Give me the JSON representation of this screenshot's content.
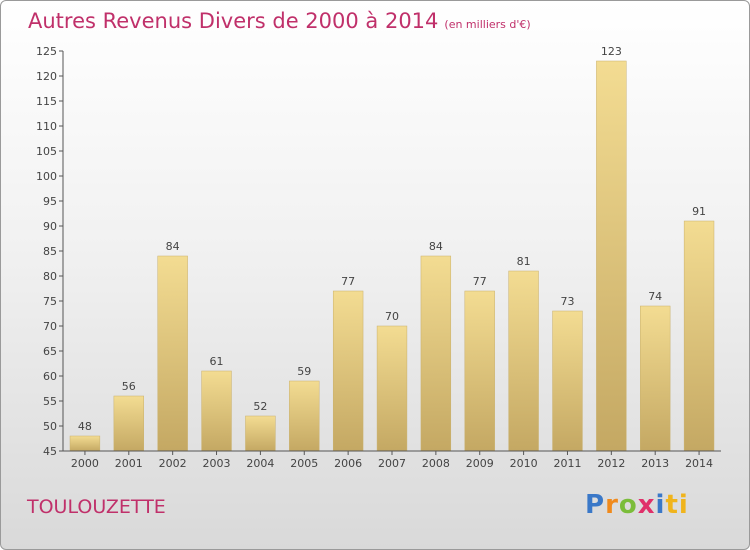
{
  "title": "Autres Revenus Divers de 2000 à 2014",
  "unit_note": "(en milliers d'€)",
  "commune": "TOULOUZETTE",
  "logo_text": "Proxiti",
  "chart_data": {
    "type": "bar",
    "categories": [
      "2000",
      "2001",
      "2002",
      "2003",
      "2004",
      "2005",
      "2006",
      "2007",
      "2008",
      "2009",
      "2010",
      "2011",
      "2012",
      "2013",
      "2014"
    ],
    "values": [
      48,
      56,
      84,
      61,
      52,
      59,
      77,
      70,
      84,
      77,
      81,
      73,
      123,
      74,
      91
    ],
    "ylim": [
      45,
      125
    ],
    "yticks": [
      45,
      50,
      55,
      60,
      65,
      70,
      75,
      80,
      85,
      90,
      95,
      100,
      105,
      110,
      115,
      120,
      125
    ],
    "grid": false,
    "bar_color": "#e8cf83"
  }
}
